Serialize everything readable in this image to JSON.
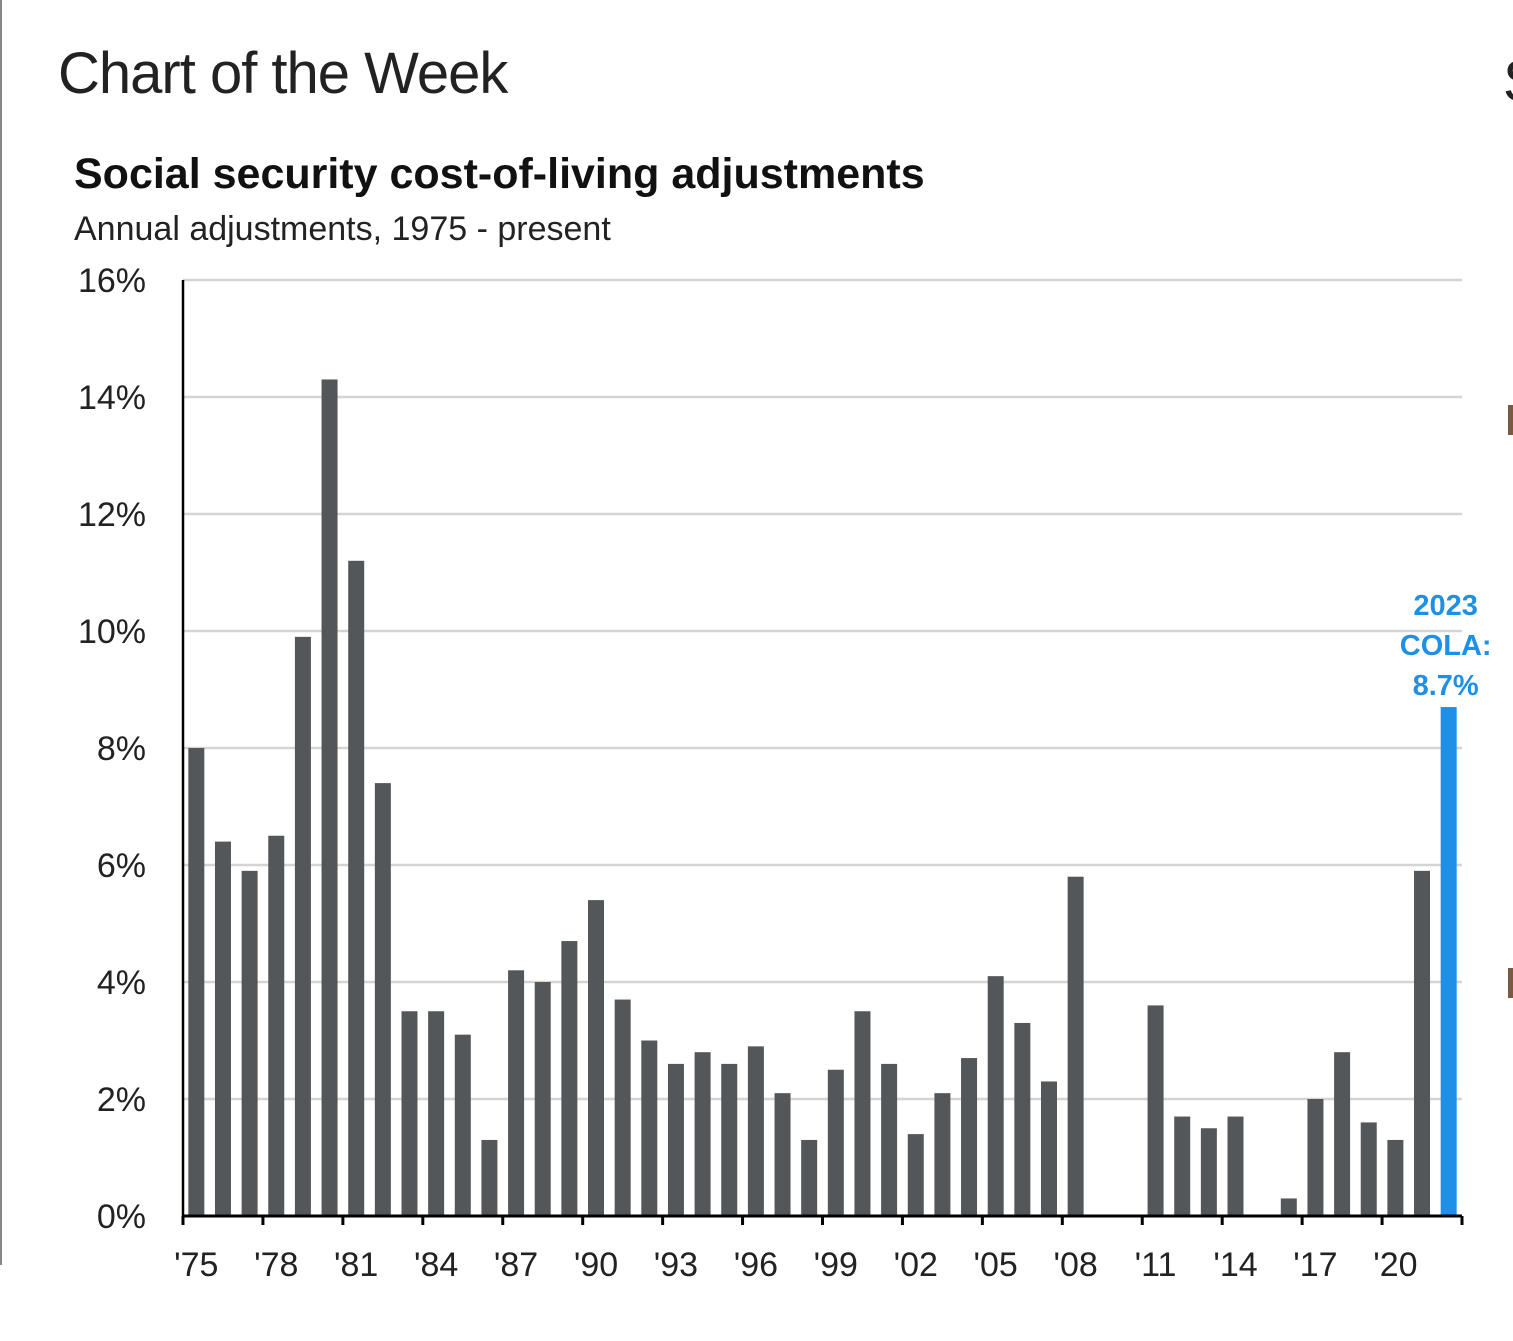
{
  "page_title": "Chart of the Week",
  "right_edge_glyph": "S",
  "chart_data": {
    "type": "bar",
    "title": "Social security cost-of-living adjustments",
    "subtitle": "Annual adjustments, 1975 - present",
    "xlabel": "",
    "ylabel": "",
    "ylim": [
      0,
      16
    ],
    "yticks": [
      "0%",
      "2%",
      "4%",
      "6%",
      "8%",
      "10%",
      "12%",
      "14%",
      "16%"
    ],
    "xticks": [
      "'75",
      "'78",
      "'81",
      "'84",
      "'87",
      "'90",
      "'93",
      "'96",
      "'99",
      "'02",
      "'05",
      "'08",
      "'11",
      "'14",
      "'17",
      "'20"
    ],
    "grid": true,
    "categories": [
      1975,
      1976,
      1977,
      1978,
      1979,
      1980,
      1981,
      1982,
      1983,
      1984,
      1985,
      1986,
      1987,
      1988,
      1989,
      1990,
      1991,
      1992,
      1993,
      1994,
      1995,
      1996,
      1997,
      1998,
      1999,
      2000,
      2001,
      2002,
      2003,
      2004,
      2005,
      2006,
      2007,
      2008,
      2009,
      2010,
      2011,
      2012,
      2013,
      2014,
      2015,
      2016,
      2017,
      2018,
      2019,
      2020,
      2021,
      2022
    ],
    "values": [
      8.0,
      6.4,
      5.9,
      6.5,
      9.9,
      14.3,
      11.2,
      7.4,
      3.5,
      3.5,
      3.1,
      1.3,
      4.2,
      4.0,
      4.7,
      5.4,
      3.7,
      3.0,
      2.6,
      2.8,
      2.6,
      2.9,
      2.1,
      1.3,
      2.5,
      3.5,
      2.6,
      1.4,
      2.1,
      2.7,
      4.1,
      3.3,
      2.3,
      5.8,
      0,
      0,
      3.6,
      1.7,
      1.5,
      1.7,
      0,
      0.3,
      2.0,
      2.8,
      1.6,
      1.3,
      5.9,
      8.7
    ],
    "bar_color": "#54575a",
    "highlight_color": "#1e90e8",
    "highlight_index": 47,
    "annotation": [
      "2023",
      "COLA:",
      "8.7%"
    ]
  }
}
